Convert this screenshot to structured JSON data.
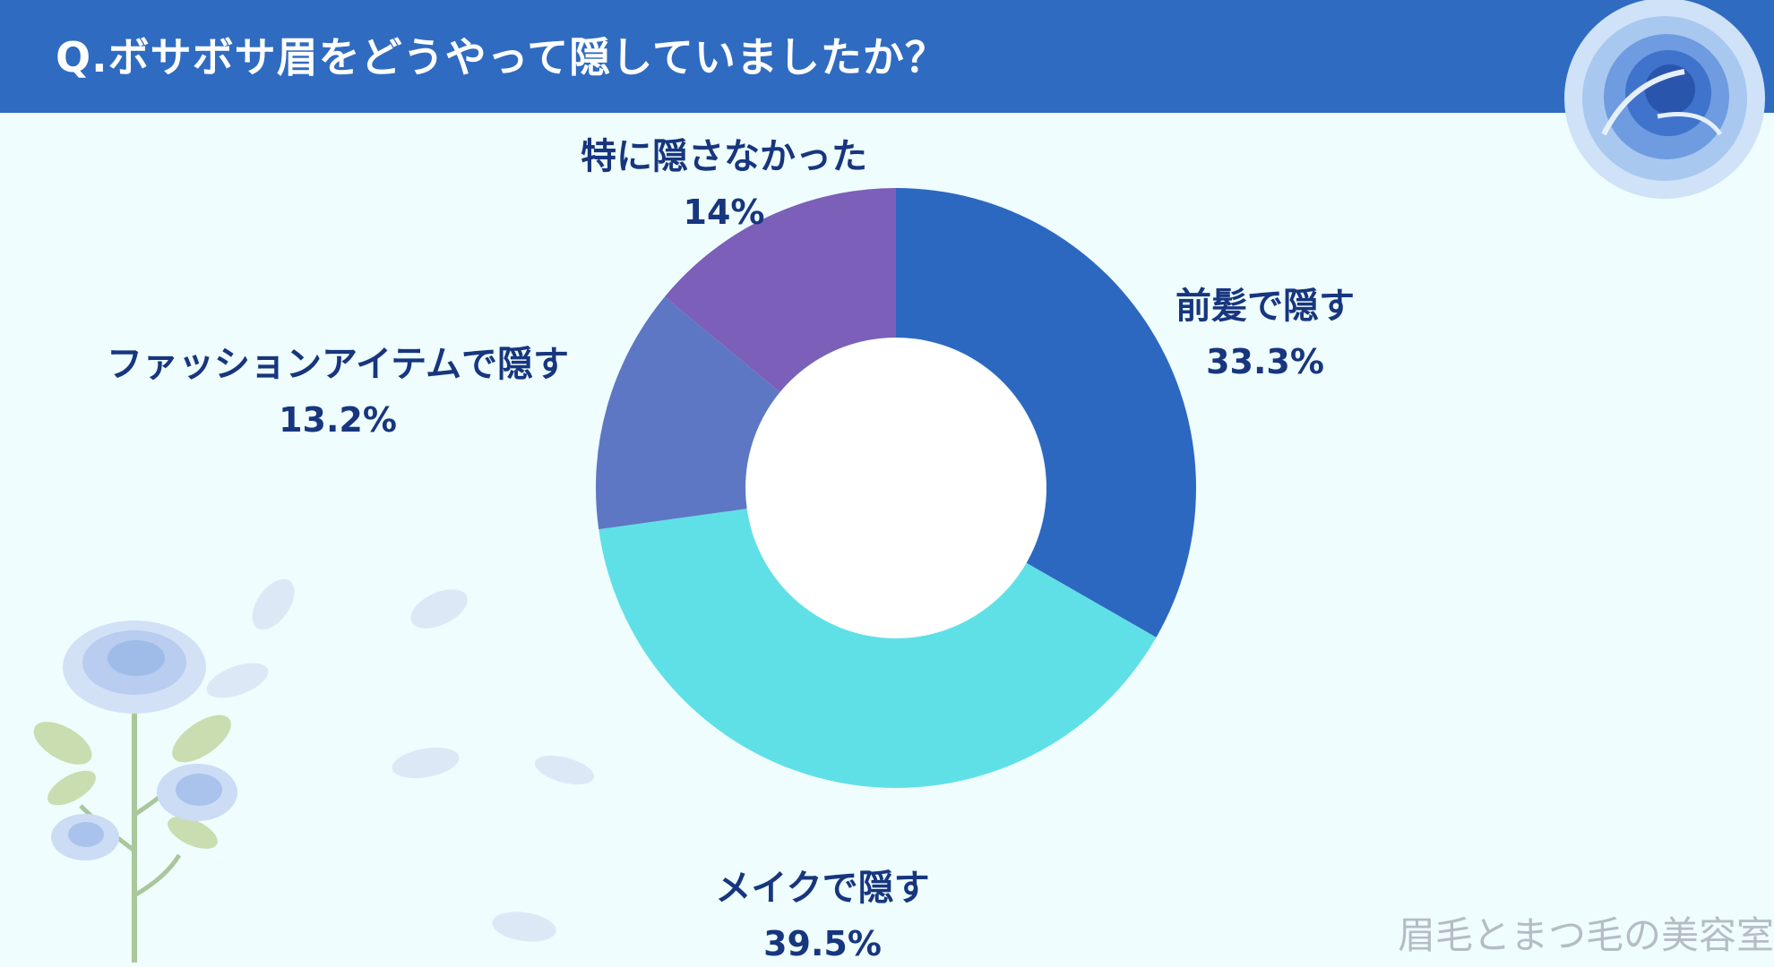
{
  "header": {
    "title": "Q.ボサボサ眉をどうやって隠していましたか？"
  },
  "watermark": "眉毛とまつ毛の美容室",
  "colors": {
    "header_bg": "#2f6bc1",
    "background": "#effdfe",
    "label_text": "#17367e",
    "slice_1": "#2d68c0",
    "slice_2": "#5fe0e6",
    "slice_3": "#5d77c4",
    "slice_4": "#7c5fb8"
  },
  "chart_data": {
    "type": "pie",
    "variant": "donut",
    "title": "",
    "legend": "none",
    "slices": [
      {
        "label": "前髪で隠す",
        "value": 33.3,
        "value_label": "33.3%",
        "color": "#2d68c0"
      },
      {
        "label": "メイクで隠す",
        "value": 39.5,
        "value_label": "39.5%",
        "color": "#5fe0e6"
      },
      {
        "label": "ファッションアイテムで隠す",
        "value": 13.2,
        "value_label": "13.2%",
        "color": "#5d77c4"
      },
      {
        "label": "特に隠さなかった",
        "value": 14,
        "value_label": "14%",
        "color": "#7c5fb8"
      }
    ]
  }
}
